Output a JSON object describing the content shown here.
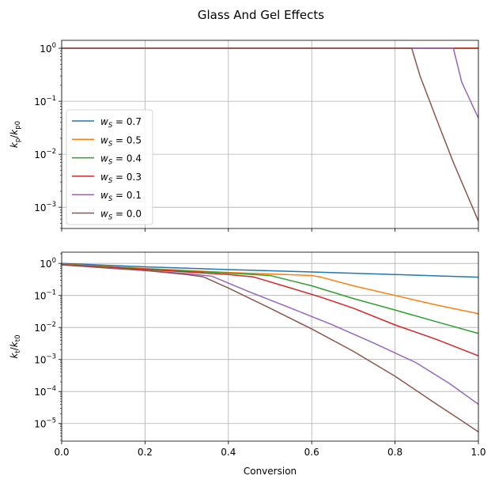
{
  "title": "Glass And Gel Effects",
  "chart_data": [
    {
      "type": "line",
      "panel": "top",
      "title": "",
      "ylabel": "k_p/k_p0",
      "ylabel_main": "k",
      "ylabel_sub": "p",
      "ylabel_den_main": "k",
      "ylabel_den_sub": "p0",
      "xlim": [
        0,
        1
      ],
      "ylim_log10": [
        -3.4,
        0.15
      ],
      "yscale": "log",
      "grid": true,
      "legend_position": "center-left",
      "yticks": [
        {
          "exp": 0,
          "label_base": "10",
          "label_exp": "0"
        },
        {
          "exp": -1,
          "label_base": "10",
          "label_exp": "−1"
        },
        {
          "exp": -2,
          "label_base": "10",
          "label_exp": "−2"
        },
        {
          "exp": -3,
          "label_base": "10",
          "label_exp": "−3"
        }
      ],
      "series": [
        {
          "name": "w_S = 0.7",
          "label_var": "w",
          "label_sub": "S",
          "label_val": " = 0.7",
          "color": "#1f77b4",
          "x": [
            0,
            1
          ],
          "y": [
            1,
            1
          ]
        },
        {
          "name": "w_S = 0.5",
          "label_var": "w",
          "label_sub": "S",
          "label_val": " = 0.5",
          "color": "#ff7f0e",
          "x": [
            0,
            1
          ],
          "y": [
            1,
            1
          ]
        },
        {
          "name": "w_S = 0.4",
          "label_var": "w",
          "label_sub": "S",
          "label_val": " = 0.4",
          "color": "#2ca02c",
          "x": [
            0,
            1
          ],
          "y": [
            1,
            1
          ]
        },
        {
          "name": "w_S = 0.3",
          "label_var": "w",
          "label_sub": "S",
          "label_val": " = 0.3",
          "color": "#d62728",
          "x": [
            0,
            1
          ],
          "y": [
            1,
            1
          ]
        },
        {
          "name": "w_S = 0.1",
          "label_var": "w",
          "label_sub": "S",
          "label_val": " = 0.1",
          "color": "#9467bd",
          "x": [
            0,
            0.94,
            0.96,
            1.0
          ],
          "y": [
            1,
            1,
            0.23,
            0.048
          ]
        },
        {
          "name": "w_S = 0.0",
          "label_var": "w",
          "label_sub": "S",
          "label_val": " = 0.0",
          "color": "#8c564b",
          "x": [
            0,
            0.84,
            0.86,
            0.9,
            0.94,
            1.0
          ],
          "y": [
            1,
            1,
            0.3,
            0.045,
            0.007,
            0.00055
          ]
        }
      ]
    },
    {
      "type": "line",
      "panel": "bottom",
      "title": "",
      "xlabel": "Conversion",
      "ylabel": "k_t/k_t0",
      "ylabel_main": "k",
      "ylabel_sub": "t",
      "ylabel_den_main": "k",
      "ylabel_den_sub": "t0",
      "xlim": [
        0,
        1
      ],
      "ylim_log10": [
        -5.55,
        0.35
      ],
      "yscale": "log",
      "grid": true,
      "xticks": [
        "0.0",
        "0.2",
        "0.4",
        "0.6",
        "0.8",
        "1.0"
      ],
      "yticks": [
        {
          "exp": 0,
          "label_base": "10",
          "label_exp": "0"
        },
        {
          "exp": -1,
          "label_base": "10",
          "label_exp": "−1"
        },
        {
          "exp": -2,
          "label_base": "10",
          "label_exp": "−2"
        },
        {
          "exp": -3,
          "label_base": "10",
          "label_exp": "−3"
        },
        {
          "exp": -4,
          "label_base": "10",
          "label_exp": "−4"
        },
        {
          "exp": -5,
          "label_base": "10",
          "label_exp": "−5"
        }
      ],
      "series": [
        {
          "name": "w_S = 0.7",
          "color": "#1f77b4",
          "x": [
            0,
            0.2,
            0.4,
            0.6,
            0.8,
            1.0
          ],
          "y": [
            1.0,
            0.78,
            0.64,
            0.54,
            0.45,
            0.37
          ]
        },
        {
          "name": "w_S = 0.5",
          "color": "#ff7f0e",
          "x": [
            0,
            0.2,
            0.4,
            0.6,
            0.62,
            0.7,
            0.8,
            0.9,
            1.0
          ],
          "y": [
            0.95,
            0.7,
            0.52,
            0.42,
            0.38,
            0.2,
            0.1,
            0.05,
            0.027
          ]
        },
        {
          "name": "w_S = 0.4",
          "color": "#2ca02c",
          "x": [
            0,
            0.2,
            0.4,
            0.5,
            0.6,
            0.7,
            0.8,
            0.9,
            1.0
          ],
          "y": [
            0.93,
            0.67,
            0.5,
            0.42,
            0.2,
            0.08,
            0.035,
            0.015,
            0.0065
          ]
        },
        {
          "name": "w_S = 0.3",
          "color": "#d62728",
          "x": [
            0,
            0.2,
            0.4,
            0.46,
            0.55,
            0.62,
            0.7,
            0.8,
            0.9,
            1.0
          ],
          "y": [
            0.92,
            0.65,
            0.45,
            0.38,
            0.17,
            0.09,
            0.04,
            0.012,
            0.0042,
            0.0013
          ]
        },
        {
          "name": "w_S = 0.1",
          "color": "#9467bd",
          "x": [
            0,
            0.2,
            0.3,
            0.36,
            0.45,
            0.55,
            0.65,
            0.75,
            0.85,
            0.93,
            1.0
          ],
          "y": [
            0.9,
            0.6,
            0.48,
            0.4,
            0.13,
            0.04,
            0.012,
            0.0032,
            0.0008,
            0.00018,
            4e-05
          ]
        },
        {
          "name": "w_S = 0.0",
          "color": "#8c564b",
          "x": [
            0,
            0.2,
            0.3,
            0.34,
            0.4,
            0.5,
            0.6,
            0.7,
            0.8,
            0.9,
            0.95,
            1.0
          ],
          "y": [
            0.9,
            0.6,
            0.45,
            0.38,
            0.17,
            0.04,
            0.009,
            0.0018,
            0.0003,
            4e-05,
            1.5e-05,
            5.5e-06
          ]
        }
      ]
    }
  ]
}
